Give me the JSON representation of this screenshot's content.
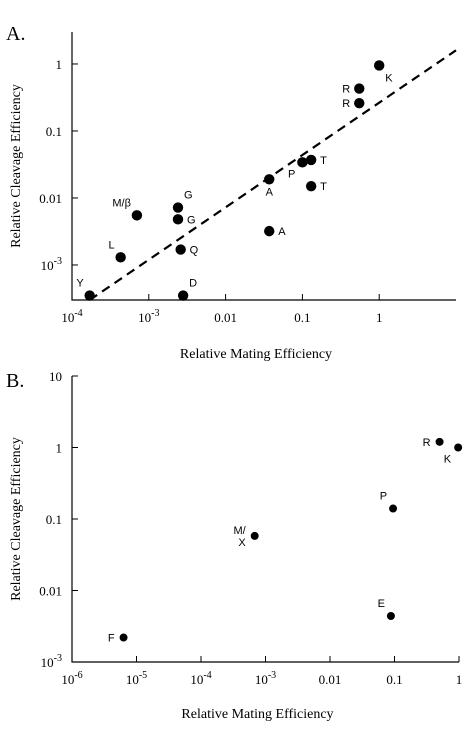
{
  "chart_data": [
    {
      "type": "scatter",
      "panel_label": "A.",
      "xlabel": "Relative Mating Efficiency",
      "ylabel": "Relative Cleavage Efficiency",
      "x_scale": "log",
      "y_scale": "log",
      "xlim": [
        0.0001,
        10
      ],
      "ylim": [
        0.0003,
        3
      ],
      "x_ticks": [
        0.0001,
        0.001,
        0.01,
        0.1,
        1
      ],
      "x_tick_labels": [
        {
          "base": "10",
          "exp": "-4"
        },
        {
          "base": "10",
          "exp": "-3"
        },
        {
          "base": "0.01",
          "exp": ""
        },
        {
          "base": "0.1",
          "exp": ""
        },
        {
          "base": "1",
          "exp": ""
        }
      ],
      "y_ticks": [
        0.001,
        0.01,
        0.1,
        1
      ],
      "y_tick_labels": [
        {
          "base": "10",
          "exp": "-3"
        },
        {
          "base": "0.01",
          "exp": ""
        },
        {
          "base": "0.1",
          "exp": ""
        },
        {
          "base": "1",
          "exp": ""
        }
      ],
      "grid": false,
      "fit_line": {
        "style": "dashed",
        "from": [
          0.00017,
          0.0003
        ],
        "to": [
          10,
          1.6
        ]
      },
      "points": [
        {
          "label": "K",
          "x": 1.0,
          "y": 0.95,
          "label_pos": "below-right"
        },
        {
          "label": "R",
          "x": 0.55,
          "y": 0.43,
          "label_pos": "left"
        },
        {
          "label": "R",
          "x": 0.55,
          "y": 0.26,
          "label_pos": "left"
        },
        {
          "label": "T",
          "x": 0.13,
          "y": 0.037,
          "label_pos": "right"
        },
        {
          "label": "P",
          "x": 0.1,
          "y": 0.034,
          "label_pos": "below-left"
        },
        {
          "label": "T",
          "x": 0.13,
          "y": 0.015,
          "label_pos": "right"
        },
        {
          "label": "A",
          "x": 0.037,
          "y": 0.019,
          "label_pos": "below"
        },
        {
          "label": "A",
          "x": 0.037,
          "y": 0.0032,
          "label_pos": "right"
        },
        {
          "label": "G",
          "x": 0.0024,
          "y": 0.0072,
          "label_pos": "above-right"
        },
        {
          "label": "G",
          "x": 0.0024,
          "y": 0.0048,
          "label_pos": "right"
        },
        {
          "label": "M/β",
          "x": 0.0007,
          "y": 0.0055,
          "label_pos": "above-left"
        },
        {
          "label": "Q",
          "x": 0.0026,
          "y": 0.0017,
          "label_pos": "right"
        },
        {
          "label": "L",
          "x": 0.00043,
          "y": 0.0013,
          "label_pos": "above-left"
        },
        {
          "label": "D",
          "x": 0.0028,
          "y": 0.00035,
          "label_pos": "above-right"
        },
        {
          "label": "Y",
          "x": 0.00017,
          "y": 0.00035,
          "label_pos": "above-left"
        }
      ]
    },
    {
      "type": "scatter",
      "panel_label": "B.",
      "xlabel": "Relative Mating Efficiency",
      "ylabel": "Relative Cleavage Efficiency",
      "x_scale": "log",
      "y_scale": "log",
      "xlim": [
        1e-06,
        1
      ],
      "ylim": [
        0.001,
        10
      ],
      "x_ticks": [
        1e-06,
        1e-05,
        0.0001,
        0.001,
        0.01,
        0.1,
        1
      ],
      "x_tick_labels": [
        {
          "base": "10",
          "exp": "-6"
        },
        {
          "base": "10",
          "exp": "-5"
        },
        {
          "base": "10",
          "exp": "-4"
        },
        {
          "base": "10",
          "exp": "-3"
        },
        {
          "base": "0.01",
          "exp": ""
        },
        {
          "base": "0.1",
          "exp": ""
        },
        {
          "base": "1",
          "exp": ""
        }
      ],
      "y_ticks": [
        0.001,
        0.01,
        0.1,
        1,
        10
      ],
      "y_tick_labels": [
        {
          "base": "10",
          "exp": "-3"
        },
        {
          "base": "0.01",
          "exp": ""
        },
        {
          "base": "0.1",
          "exp": ""
        },
        {
          "base": "1",
          "exp": ""
        },
        {
          "base": "10",
          "exp": ""
        }
      ],
      "grid": false,
      "points": [
        {
          "label": "R",
          "x": 0.5,
          "y": 1.2,
          "label_pos": "left"
        },
        {
          "label": "K",
          "x": 0.97,
          "y": 1.0,
          "label_pos": "below-left"
        },
        {
          "label": "P",
          "x": 0.095,
          "y": 0.14,
          "label_pos": "above-left"
        },
        {
          "label": "M/\nX",
          "x": 0.00068,
          "y": 0.058,
          "label_pos": "left"
        },
        {
          "label": "E",
          "x": 0.088,
          "y": 0.0044,
          "label_pos": "above-left"
        },
        {
          "label": "F",
          "x": 6.3e-06,
          "y": 0.0022,
          "label_pos": "left"
        }
      ]
    }
  ]
}
